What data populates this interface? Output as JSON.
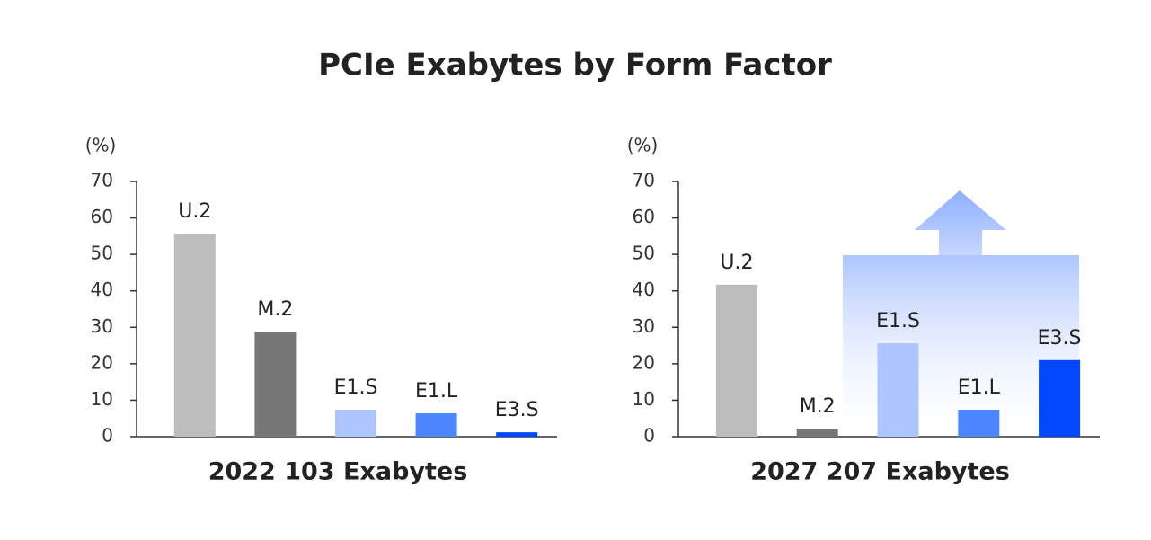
{
  "title": "PCIe Exabytes by Form Factor",
  "chart_data": [
    {
      "type": "bar",
      "title": "2022 103 Exabytes",
      "y_label": "(%)",
      "categories": [
        "U.2",
        "M.2",
        "E1.S",
        "E1.L",
        "E3.S"
      ],
      "values": [
        55.7,
        28.8,
        7.4,
        6.4,
        1.2
      ],
      "colors": [
        "#bdbdbd",
        "#777777",
        "#aec6ff",
        "#4d87ff",
        "#0047ff"
      ],
      "ylim": [
        0,
        70
      ],
      "yticks": [
        0,
        10,
        20,
        30,
        40,
        50,
        60,
        70
      ],
      "grid": false
    },
    {
      "type": "bar",
      "title": "2027 207 Exabytes",
      "y_label": "(%)",
      "categories": [
        "U.2",
        "M.2",
        "E1.S",
        "E1.L",
        "E3.S"
      ],
      "values": [
        41.7,
        2.2,
        25.6,
        7.4,
        21
      ],
      "colors": [
        "#bdbdbd",
        "#777777",
        "#aec6ff",
        "#4d87ff",
        "#0047ff"
      ],
      "ylim": [
        0,
        70
      ],
      "yticks": [
        0,
        10,
        20,
        30,
        40,
        50,
        60,
        70
      ],
      "grid": false
    }
  ]
}
